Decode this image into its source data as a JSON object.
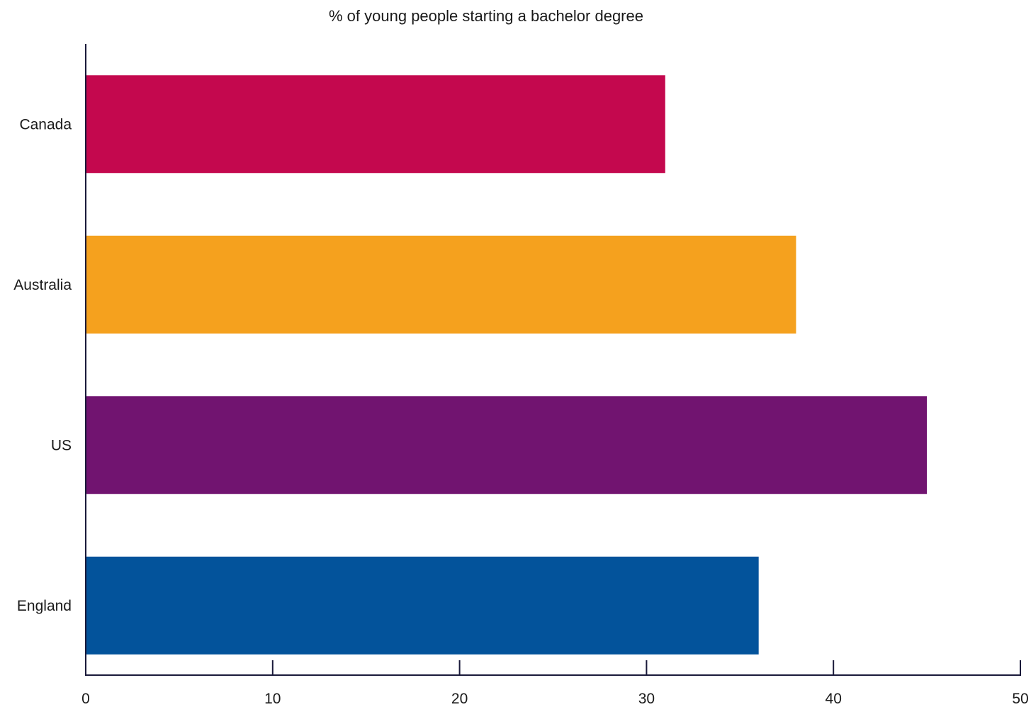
{
  "chart_data": {
    "type": "bar",
    "orientation": "horizontal",
    "title": "% of young people starting a bachelor degree",
    "categories": [
      "Canada",
      "Australia",
      "US",
      "England"
    ],
    "values": [
      31,
      38,
      45,
      36
    ],
    "colors": [
      "#c4084e",
      "#f5a11e",
      "#711470",
      "#03539b"
    ],
    "xlim": [
      0,
      50
    ],
    "xticks": [
      0,
      10,
      20,
      30,
      40,
      50
    ],
    "grid": false,
    "legend": "none"
  },
  "style": {
    "axis_color": "#1a1a3a"
  }
}
